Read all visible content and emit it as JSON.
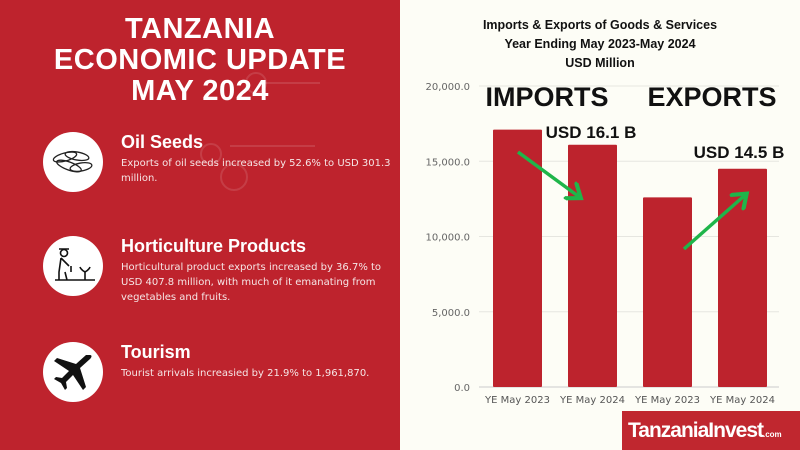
{
  "left": {
    "title": [
      "TANZANIA",
      "ECONOMIC UPDATE",
      "MAY 2024"
    ],
    "items": [
      {
        "icon": "oil-seeds-icon",
        "heading": "Oil Seeds",
        "text": "Exports of oil seeds increased by 52.6% to USD 301.3 million."
      },
      {
        "icon": "farmer-planting-icon",
        "heading": "Horticulture Products",
        "text": "Horticultural product exports increased by 36.7% to USD 407.8 million, with much of it emanating from vegetables and fruits."
      },
      {
        "icon": "airplane-icon",
        "heading": "Tourism",
        "text": "Tourist arrivals increasied by 21.9% to 1,961,870."
      }
    ]
  },
  "chart_data": {
    "type": "bar",
    "title": [
      "Imports & Exports of Goods & Services",
      "Year Ending May 2023-May 2024",
      "USD Million"
    ],
    "categories": [
      "YE May 2023",
      "YE May 2024",
      "YE May 2023",
      "YE May 2024"
    ],
    "values": [
      17100,
      16100,
      12600,
      14500
    ],
    "groups": [
      "IMPORTS",
      "EXPORTS"
    ],
    "annotations": [
      "USD 16.1 B",
      "USD 14.5 B"
    ],
    "yticks": [
      "0.0",
      "5,000.0",
      "10,000.0",
      "15,000.0",
      "20,000.0"
    ],
    "ylim": [
      0,
      20000
    ],
    "grid": true,
    "bar_color": "#bd232d",
    "arrow_color": "#1fb54a"
  },
  "logo": {
    "text": "TanzaniaInvest",
    "suffix": ".com"
  }
}
